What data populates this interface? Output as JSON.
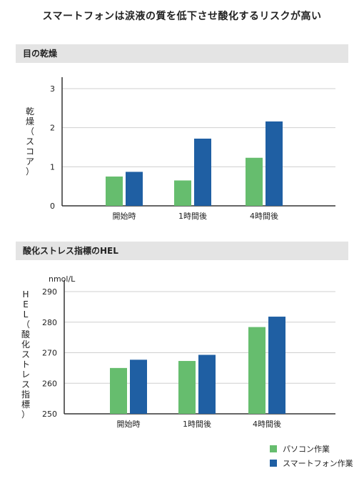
{
  "title": "スマートフォンは涙液の質を低下させ酸化するリスクが高い",
  "colors": {
    "green": "#66bd6e",
    "blue": "#1f5fa3",
    "grid": "#cfcfcf",
    "axis": "#333333"
  },
  "legend": [
    {
      "label": "パソコン作業",
      "color": "#66bd6e"
    },
    {
      "label": "スマートフォン作業",
      "color": "#1f5fa3"
    }
  ],
  "chart_data": [
    {
      "type": "bar",
      "title": "目の乾燥",
      "ylabel": "乾燥（スコア）",
      "unit": "",
      "categories": [
        "開始時",
        "1時間後",
        "4時間後"
      ],
      "series": [
        {
          "name": "パソコン作業",
          "values": [
            0.75,
            0.65,
            1.23
          ]
        },
        {
          "name": "スマートフォン作業",
          "values": [
            0.87,
            1.72,
            2.16
          ]
        }
      ],
      "ylim": [
        0,
        3
      ],
      "yticks": [
        0,
        1,
        2,
        3
      ],
      "grid": true
    },
    {
      "type": "bar",
      "title": "酸化ストレス指標のHEL",
      "ylabel": "HEL（酸化ストレス指標）",
      "unit": "nmol/L",
      "categories": [
        "開始時",
        "1時間後",
        "4時間後"
      ],
      "series": [
        {
          "name": "パソコン作業",
          "values": [
            265,
            267.3,
            278.4
          ]
        },
        {
          "name": "スマートフォン作業",
          "values": [
            267.7,
            269.3,
            281.8
          ]
        }
      ],
      "ylim": [
        250,
        290
      ],
      "yticks": [
        250,
        260,
        270,
        280,
        290
      ],
      "grid": true
    }
  ]
}
